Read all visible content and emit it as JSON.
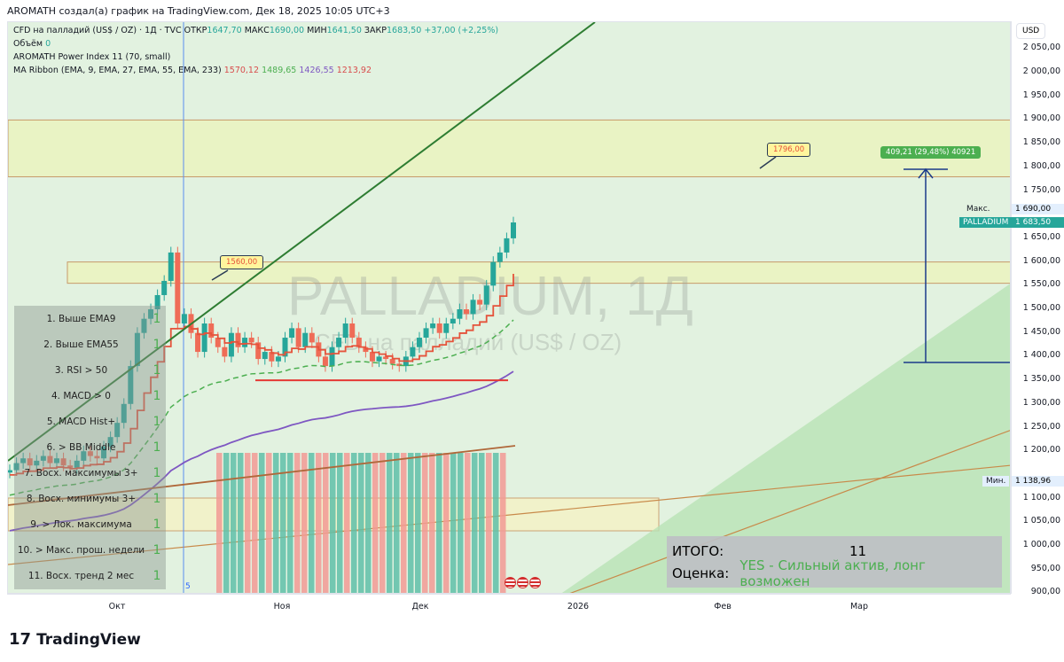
{
  "header": "AROMATH создал(а) график на TradingView.com, Дек 18, 2025 10:05 UTC+3",
  "legend": {
    "symbol": "CFD на палладий (US$ / OZ) · 1Д · TVC",
    "open_label": "ОТКР",
    "open": "1647,70",
    "high_label": "МАКС",
    "high": "1690,00",
    "low_label": "МИН",
    "low": "1641,50",
    "close_label": "ЗАКР",
    "close": "1683,50",
    "change": "+37,00 (+2,25%)",
    "volume_label": "Объём",
    "volume": "0",
    "indicator1": "AROMATH Power Index 11 (70, small)",
    "indicator2": "MA Ribbon (EMA, 9, EMA, 27, EMA, 55, EMA, 233)",
    "ma": [
      "1570,12",
      "1489,65",
      "1426,55",
      "1213,92"
    ]
  },
  "watermark": {
    "title": "PALLADIUM, 1Д",
    "subtitle": "CFD на палладий (US$ / OZ)"
  },
  "axis": {
    "currency": "USD",
    "ticks": [
      "2 050,00",
      "2 000,00",
      "1 950,00",
      "1 900,00",
      "1 850,00",
      "1 800,00",
      "1 750,00",
      "1 650,00",
      "1 600,00",
      "1 550,00",
      "1 500,00",
      "1 450,00",
      "1 400,00",
      "1 350,00",
      "1 300,00",
      "1 250,00",
      "1 200,00",
      "1 100,00",
      "1 050,00",
      "1 000,00",
      "950,00",
      "900,00"
    ],
    "tick_values": [
      2050,
      2000,
      1950,
      1900,
      1850,
      1800,
      1750,
      1650,
      1600,
      1550,
      1500,
      1450,
      1400,
      1350,
      1300,
      1250,
      1200,
      1100,
      1050,
      1000,
      950,
      900
    ],
    "max_label": "Макс.",
    "max_value": "1 690,00",
    "symbol_label": "PALLADIUM",
    "last_value": "1 683,50",
    "min_label": "Мин.",
    "min_value": "1 138,96"
  },
  "xaxis": {
    "labels": [
      "Окт",
      "Ноя",
      "Дек",
      "2026",
      "Фев",
      "Мар"
    ]
  },
  "annotations": {
    "callout1": "1560,00",
    "callout2": "1796,00",
    "measure": "409,21 (29,48%) 40921",
    "marker": "5"
  },
  "closes": [
    1160,
    1175,
    1185,
    1170,
    1180,
    1190,
    1175,
    1185,
    1170,
    1165,
    1180,
    1200,
    1190,
    1185,
    1210,
    1230,
    1260,
    1300,
    1380,
    1450,
    1480,
    1500,
    1530,
    1560,
    1620,
    1470,
    1490,
    1450,
    1410,
    1470,
    1440,
    1420,
    1400,
    1450,
    1420,
    1440,
    1430,
    1395,
    1410,
    1390,
    1400,
    1440,
    1460,
    1420,
    1450,
    1430,
    1400,
    1380,
    1420,
    1440,
    1470,
    1440,
    1420,
    1410,
    1390,
    1400,
    1395,
    1385,
    1380,
    1400,
    1420,
    1440,
    1460,
    1470,
    1450,
    1470,
    1480,
    1500,
    1490,
    1520,
    1510,
    1550,
    1600,
    1620,
    1650,
    1683.5
  ],
  "hist_colors": "rgggrrgrgggrrgrrggrgggrrggrggrrgrggrggrgr",
  "colors": {
    "up": "#26a69a",
    "down": "#ef6c57",
    "ema9": "#e5533b",
    "ema27": "#4caf50",
    "ema55": "#7e57c2",
    "ema233": "#b0683a",
    "trend": "#2e7d32",
    "measure": "#1a3a8a"
  },
  "checklist": [
    {
      "label": "1. Выше EMA9",
      "value": "1"
    },
    {
      "label": "2. Выше EMA55",
      "value": "1"
    },
    {
      "label": "3. RSI > 50",
      "value": "1"
    },
    {
      "label": "4. MACD > 0",
      "value": "1"
    },
    {
      "label": "5. MACD Hist+",
      "value": "1"
    },
    {
      "label": "6. > BB Middle",
      "value": "1"
    },
    {
      "label": "7. Восх. максимумы 3+",
      "value": "1"
    },
    {
      "label": "8. Восх. минимумы 3+",
      "value": "1"
    },
    {
      "label": "9. > Лок. максимума",
      "value": "1"
    },
    {
      "label": "10. > Макс. прош. недели",
      "value": "1"
    },
    {
      "label": "11. Восх. тренд 2 мес",
      "value": "1"
    }
  ],
  "summary": {
    "total_label": "ИТОГО:",
    "total": "11",
    "rating_label": "Оценка:",
    "rating": "YES - Сильный актив, лонг возможен"
  },
  "brand": "TradingView"
}
